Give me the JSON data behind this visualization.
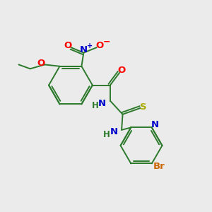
{
  "background_color": "#ebebeb",
  "bond_color": "#2d7a2d",
  "bond_width": 1.4,
  "atom_colors": {
    "C": "#2d7a2d",
    "N": "#0000cc",
    "O": "#ff0000",
    "S": "#aaaa00",
    "Br": "#cc6600",
    "H": "#2d7a2d"
  },
  "font_size": 9.5,
  "font_size_small": 8.5
}
